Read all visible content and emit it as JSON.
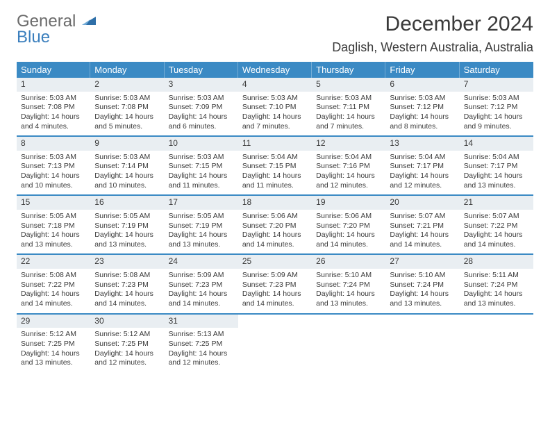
{
  "logo": {
    "line1": "General",
    "line2": "Blue"
  },
  "header": {
    "month_title": "December 2024",
    "location": "Daglish, Western Australia, Australia"
  },
  "calendar": {
    "weekday_bg": "#3b8ac4",
    "weekday_fg": "#ffffff",
    "daynum_bg": "#e9eef2",
    "border_color": "#3b8ac4",
    "weekdays": [
      "Sunday",
      "Monday",
      "Tuesday",
      "Wednesday",
      "Thursday",
      "Friday",
      "Saturday"
    ],
    "weeks": [
      [
        {
          "n": "1",
          "sr": "5:03 AM",
          "ss": "7:08 PM",
          "dl": "14 hours and 4 minutes."
        },
        {
          "n": "2",
          "sr": "5:03 AM",
          "ss": "7:08 PM",
          "dl": "14 hours and 5 minutes."
        },
        {
          "n": "3",
          "sr": "5:03 AM",
          "ss": "7:09 PM",
          "dl": "14 hours and 6 minutes."
        },
        {
          "n": "4",
          "sr": "5:03 AM",
          "ss": "7:10 PM",
          "dl": "14 hours and 7 minutes."
        },
        {
          "n": "5",
          "sr": "5:03 AM",
          "ss": "7:11 PM",
          "dl": "14 hours and 7 minutes."
        },
        {
          "n": "6",
          "sr": "5:03 AM",
          "ss": "7:12 PM",
          "dl": "14 hours and 8 minutes."
        },
        {
          "n": "7",
          "sr": "5:03 AM",
          "ss": "7:12 PM",
          "dl": "14 hours and 9 minutes."
        }
      ],
      [
        {
          "n": "8",
          "sr": "5:03 AM",
          "ss": "7:13 PM",
          "dl": "14 hours and 10 minutes."
        },
        {
          "n": "9",
          "sr": "5:03 AM",
          "ss": "7:14 PM",
          "dl": "14 hours and 10 minutes."
        },
        {
          "n": "10",
          "sr": "5:03 AM",
          "ss": "7:15 PM",
          "dl": "14 hours and 11 minutes."
        },
        {
          "n": "11",
          "sr": "5:04 AM",
          "ss": "7:15 PM",
          "dl": "14 hours and 11 minutes."
        },
        {
          "n": "12",
          "sr": "5:04 AM",
          "ss": "7:16 PM",
          "dl": "14 hours and 12 minutes."
        },
        {
          "n": "13",
          "sr": "5:04 AM",
          "ss": "7:17 PM",
          "dl": "14 hours and 12 minutes."
        },
        {
          "n": "14",
          "sr": "5:04 AM",
          "ss": "7:17 PM",
          "dl": "14 hours and 13 minutes."
        }
      ],
      [
        {
          "n": "15",
          "sr": "5:05 AM",
          "ss": "7:18 PM",
          "dl": "14 hours and 13 minutes."
        },
        {
          "n": "16",
          "sr": "5:05 AM",
          "ss": "7:19 PM",
          "dl": "14 hours and 13 minutes."
        },
        {
          "n": "17",
          "sr": "5:05 AM",
          "ss": "7:19 PM",
          "dl": "14 hours and 13 minutes."
        },
        {
          "n": "18",
          "sr": "5:06 AM",
          "ss": "7:20 PM",
          "dl": "14 hours and 14 minutes."
        },
        {
          "n": "19",
          "sr": "5:06 AM",
          "ss": "7:20 PM",
          "dl": "14 hours and 14 minutes."
        },
        {
          "n": "20",
          "sr": "5:07 AM",
          "ss": "7:21 PM",
          "dl": "14 hours and 14 minutes."
        },
        {
          "n": "21",
          "sr": "5:07 AM",
          "ss": "7:22 PM",
          "dl": "14 hours and 14 minutes."
        }
      ],
      [
        {
          "n": "22",
          "sr": "5:08 AM",
          "ss": "7:22 PM",
          "dl": "14 hours and 14 minutes."
        },
        {
          "n": "23",
          "sr": "5:08 AM",
          "ss": "7:23 PM",
          "dl": "14 hours and 14 minutes."
        },
        {
          "n": "24",
          "sr": "5:09 AM",
          "ss": "7:23 PM",
          "dl": "14 hours and 14 minutes."
        },
        {
          "n": "25",
          "sr": "5:09 AM",
          "ss": "7:23 PM",
          "dl": "14 hours and 14 minutes."
        },
        {
          "n": "26",
          "sr": "5:10 AM",
          "ss": "7:24 PM",
          "dl": "14 hours and 13 minutes."
        },
        {
          "n": "27",
          "sr": "5:10 AM",
          "ss": "7:24 PM",
          "dl": "14 hours and 13 minutes."
        },
        {
          "n": "28",
          "sr": "5:11 AM",
          "ss": "7:24 PM",
          "dl": "14 hours and 13 minutes."
        }
      ],
      [
        {
          "n": "29",
          "sr": "5:12 AM",
          "ss": "7:25 PM",
          "dl": "14 hours and 13 minutes."
        },
        {
          "n": "30",
          "sr": "5:12 AM",
          "ss": "7:25 PM",
          "dl": "14 hours and 12 minutes."
        },
        {
          "n": "31",
          "sr": "5:13 AM",
          "ss": "7:25 PM",
          "dl": "14 hours and 12 minutes."
        },
        null,
        null,
        null,
        null
      ]
    ]
  }
}
